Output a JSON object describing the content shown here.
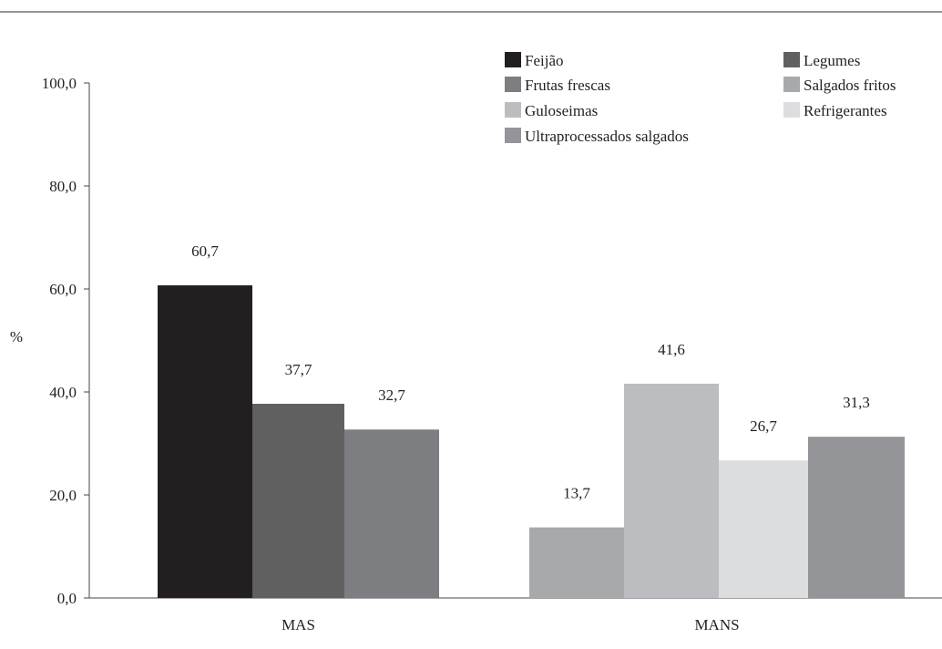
{
  "chart_data": {
    "type": "bar",
    "ylabel": "%",
    "ylim": [
      0,
      100
    ],
    "yticks": [
      "0,0",
      "20,0",
      "40,0",
      "60,0",
      "80,0",
      "100,0"
    ],
    "ytick_values": [
      0,
      20,
      40,
      60,
      80,
      100
    ],
    "grid": false,
    "legend_position": "top-right",
    "groups": [
      {
        "category": "MAS",
        "bars": [
          {
            "series": "Feijão",
            "value": 60.7,
            "label": "60,7"
          },
          {
            "series": "Legumes",
            "value": 37.7,
            "label": "37,7"
          },
          {
            "series": "Frutas frescas",
            "value": 32.7,
            "label": "32,7"
          }
        ]
      },
      {
        "category": "MANS",
        "bars": [
          {
            "series": "Salgados fritos",
            "value": 13.7,
            "label": "13,7"
          },
          {
            "series": "Guloseimas",
            "value": 41.6,
            "label": "41,6"
          },
          {
            "series": "Refrigerantes",
            "value": 26.7,
            "label": "26,7"
          },
          {
            "series": "Ultraprocessados salgados",
            "value": 31.3,
            "label": "31,3"
          }
        ]
      }
    ],
    "legend": [
      {
        "name": "Feijão",
        "color": "#231f20"
      },
      {
        "name": "Legumes",
        "color": "#606060"
      },
      {
        "name": "Frutas frescas",
        "color": "#7d7e81"
      },
      {
        "name": "Salgados fritos",
        "color": "#a8a9ab"
      },
      {
        "name": "Guloseimas",
        "color": "#bcbdc0"
      },
      {
        "name": "Refrigerantes",
        "color": "#dcdddf"
      },
      {
        "name": "Ultraprocessados salgados",
        "color": "#939598"
      }
    ]
  }
}
